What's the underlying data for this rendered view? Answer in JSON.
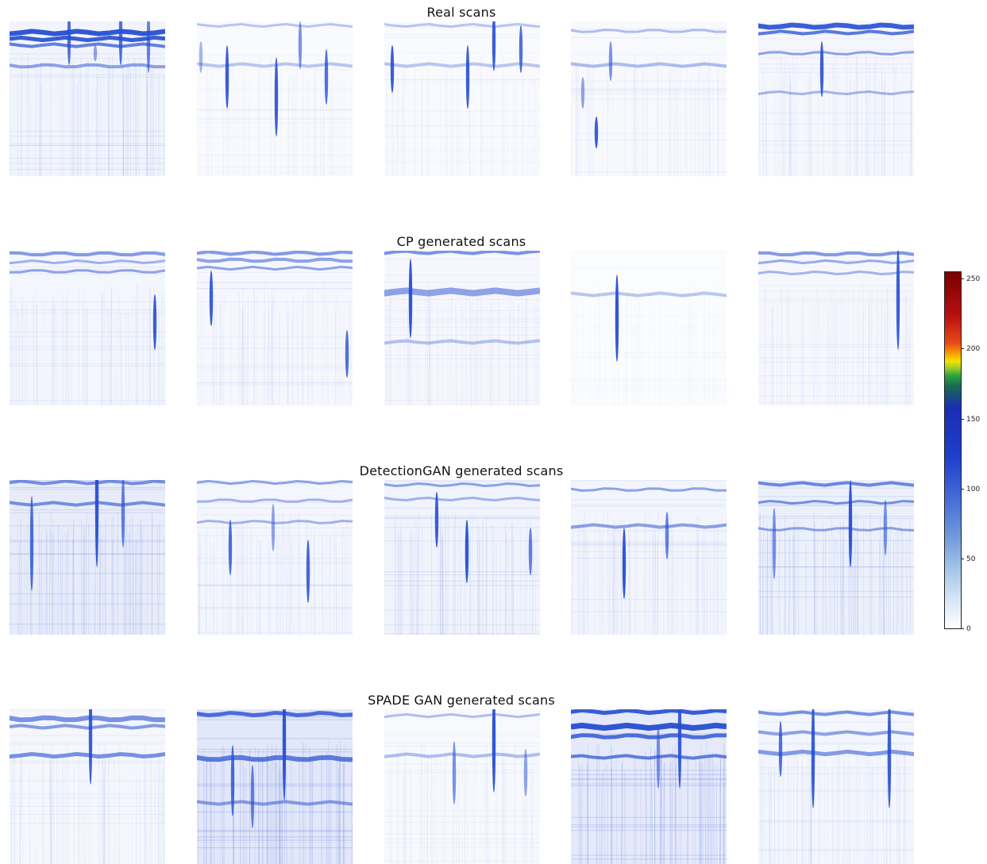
{
  "rows": [
    {
      "title": "Real scans"
    },
    {
      "title": "CP generated scans"
    },
    {
      "title": "DetectionGAN generated scans"
    },
    {
      "title": "SPADE GAN generated scans"
    }
  ],
  "colorbar": {
    "ticks": [
      "250",
      "200",
      "150",
      "100",
      "50",
      "0"
    ],
    "range": [
      0,
      255
    ]
  },
  "colors": {
    "low": "#ffffff",
    "mid": "#3f66d6",
    "high": "#780000"
  }
}
